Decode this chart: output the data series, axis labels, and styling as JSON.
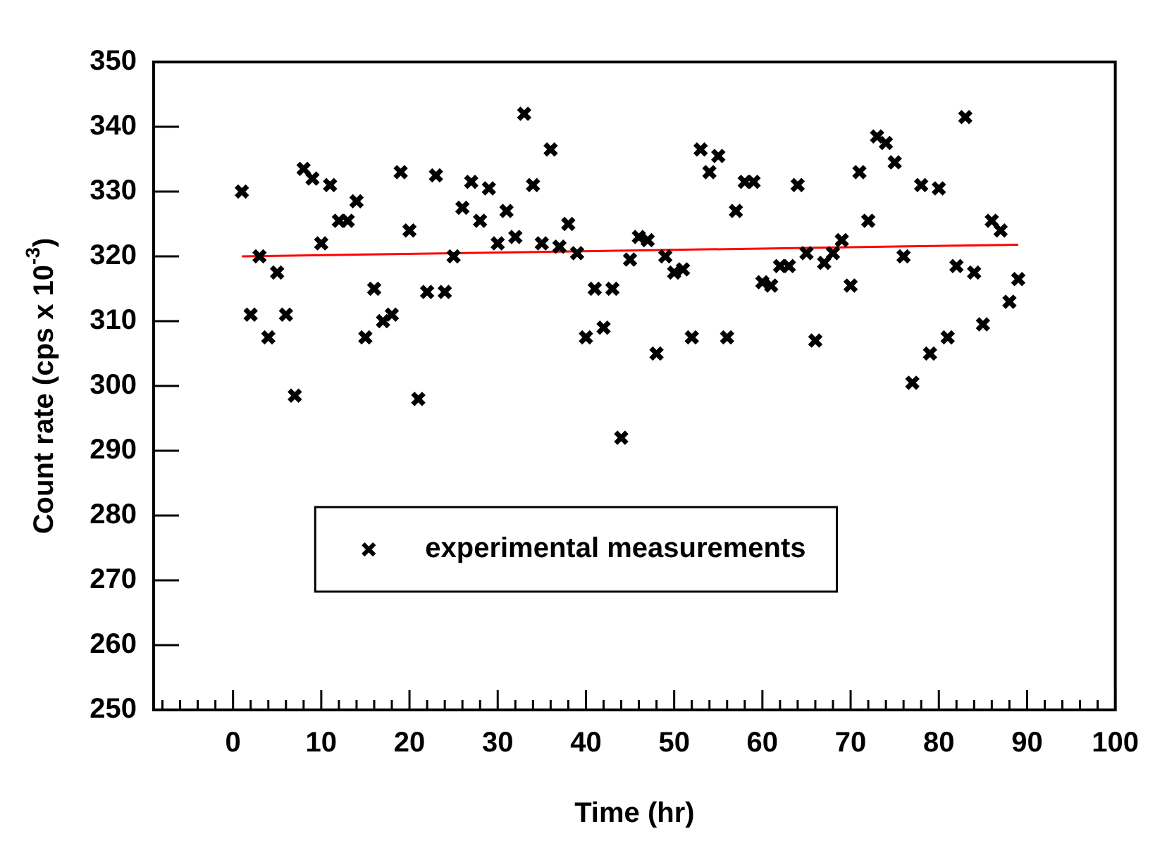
{
  "chart_data": {
    "type": "scatter",
    "xlabel": "Time (hr)",
    "ylabel": "Count rate (cps x 10$^{-3}$)",
    "xlim": [
      -9,
      100
    ],
    "xticks": [
      0,
      10,
      20,
      30,
      40,
      50,
      60,
      70,
      80,
      90,
      100
    ],
    "ylim": [
      250,
      350
    ],
    "yticks": [
      250,
      260,
      270,
      280,
      290,
      300,
      310,
      320,
      330,
      340,
      350
    ],
    "grid": false,
    "legend": "bottom left",
    "marker": "cross",
    "series": [
      {
        "name": "experimental measurements",
        "color": "#000000",
        "x": [
          1,
          2,
          3,
          4,
          5,
          6,
          7,
          8,
          9,
          10,
          11,
          12,
          13,
          14,
          15,
          16,
          17,
          18,
          19,
          20,
          21,
          22,
          23,
          24,
          25,
          26,
          27,
          28,
          29,
          30,
          31,
          32,
          33,
          34,
          35,
          36,
          37,
          38,
          39,
          40,
          41,
          42,
          43,
          44,
          45,
          46,
          47,
          48,
          49,
          50,
          51,
          52,
          53,
          54,
          55,
          56,
          57,
          58,
          59,
          60,
          61,
          62,
          63,
          64,
          65,
          66,
          67,
          68,
          69,
          70,
          71,
          72,
          73,
          74,
          75,
          76,
          77,
          78,
          79,
          80,
          81,
          82,
          83,
          84,
          85,
          86,
          87,
          88,
          89
        ],
        "values": [
          330,
          311,
          320,
          307.5,
          317.5,
          311,
          298.5,
          333.5,
          332,
          322,
          331,
          325.5,
          325.5,
          328.5,
          307.5,
          315,
          310,
          311,
          333,
          324,
          298,
          314.5,
          332.5,
          314.5,
          320,
          327.5,
          331.5,
          325.5,
          330.5,
          322,
          327,
          323,
          342,
          331,
          322,
          336.5,
          321.5,
          325,
          320.5,
          307.5,
          315,
          309,
          315,
          292,
          319.5,
          323,
          322.5,
          305,
          320,
          317.5,
          318,
          307.5,
          336.5,
          333,
          335.5,
          307.5,
          327,
          331.5,
          331.5,
          316,
          315.5,
          318.5,
          318.5,
          331,
          320.5,
          307,
          319,
          320.5,
          322.5,
          315.5,
          333,
          325.5,
          338.5,
          337.5,
          334.5,
          320,
          300.5,
          331,
          305,
          330.5,
          307.5,
          318.5,
          341.5,
          317.5,
          309.5,
          325.5,
          324,
          313,
          316.5
        ]
      },
      {
        "type": "line",
        "color": "#ff0000",
        "marker": "none",
        "x": [
          1,
          89
        ],
        "values": [
          320,
          321.8
        ]
      }
    ]
  }
}
